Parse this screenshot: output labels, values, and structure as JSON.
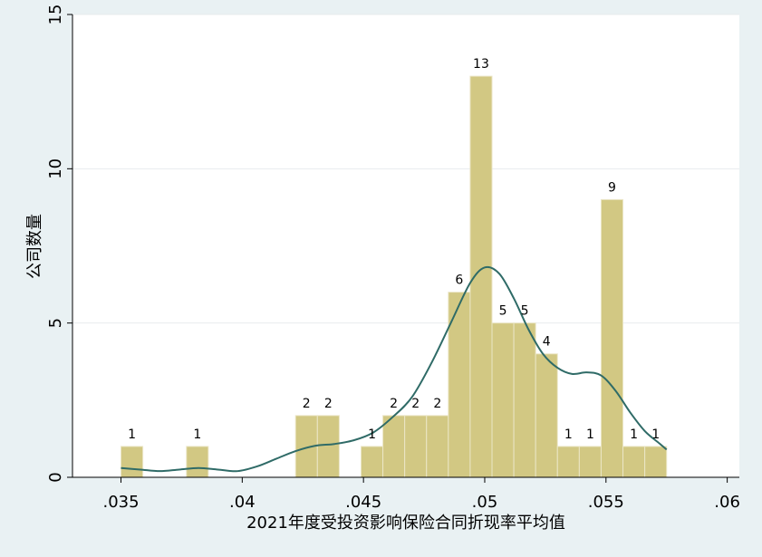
{
  "chart_data": {
    "type": "bar",
    "xlabel": "2021年度受投资影响保险合同折现率平均值",
    "ylabel": "公司数量",
    "xlim": [
      0.033,
      0.0605
    ],
    "ylim": [
      0,
      15
    ],
    "xticks": [
      {
        "value": 0.035,
        "label": ".035"
      },
      {
        "value": 0.04,
        "label": ".04"
      },
      {
        "value": 0.045,
        "label": ".045"
      },
      {
        "value": 0.05,
        "label": ".05"
      },
      {
        "value": 0.055,
        "label": ".055"
      },
      {
        "value": 0.06,
        "label": ".06"
      }
    ],
    "yticks": [
      {
        "value": 0,
        "label": "0"
      },
      {
        "value": 5,
        "label": "5"
      },
      {
        "value": 10,
        "label": "10"
      },
      {
        "value": 15,
        "label": "15"
      }
    ],
    "bin_width": 0.0009,
    "bars": [
      {
        "x": 0.035,
        "count": 1,
        "label": "1"
      },
      {
        "x": 0.0377,
        "count": 1,
        "label": "1"
      },
      {
        "x": 0.0422,
        "count": 2,
        "label": "2"
      },
      {
        "x": 0.0431,
        "count": 2,
        "label": "2"
      },
      {
        "x": 0.0449,
        "count": 1,
        "label": "1"
      },
      {
        "x": 0.0458,
        "count": 2,
        "label": "2"
      },
      {
        "x": 0.0467,
        "count": 2,
        "label": "2"
      },
      {
        "x": 0.0476,
        "count": 2,
        "label": "2"
      },
      {
        "x": 0.0485,
        "count": 6,
        "label": "6"
      },
      {
        "x": 0.0494,
        "count": 13,
        "label": "13"
      },
      {
        "x": 0.0503,
        "count": 5,
        "label": "5"
      },
      {
        "x": 0.0512,
        "count": 5,
        "label": "5"
      },
      {
        "x": 0.0521,
        "count": 4,
        "label": "4"
      },
      {
        "x": 0.053,
        "count": 1,
        "label": "1"
      },
      {
        "x": 0.0539,
        "count": 1,
        "label": "1"
      },
      {
        "x": 0.0548,
        "count": 9,
        "label": "9"
      },
      {
        "x": 0.0557,
        "count": 1,
        "label": "1"
      },
      {
        "x": 0.0566,
        "count": 1,
        "label": "1"
      }
    ],
    "density_curve": [
      [
        0.035,
        0.3
      ],
      [
        0.0358,
        0.25
      ],
      [
        0.0366,
        0.2
      ],
      [
        0.0374,
        0.25
      ],
      [
        0.0382,
        0.3
      ],
      [
        0.039,
        0.25
      ],
      [
        0.0398,
        0.2
      ],
      [
        0.0406,
        0.35
      ],
      [
        0.0414,
        0.6
      ],
      [
        0.0422,
        0.85
      ],
      [
        0.043,
        1.02
      ],
      [
        0.0438,
        1.08
      ],
      [
        0.0446,
        1.2
      ],
      [
        0.0454,
        1.45
      ],
      [
        0.0462,
        1.95
      ],
      [
        0.047,
        2.6
      ],
      [
        0.0478,
        3.7
      ],
      [
        0.0486,
        5.0
      ],
      [
        0.0494,
        6.3
      ],
      [
        0.05,
        6.8
      ],
      [
        0.0506,
        6.6
      ],
      [
        0.0512,
        5.8
      ],
      [
        0.0518,
        4.8
      ],
      [
        0.0524,
        4.0
      ],
      [
        0.053,
        3.55
      ],
      [
        0.0536,
        3.35
      ],
      [
        0.0542,
        3.4
      ],
      [
        0.0548,
        3.3
      ],
      [
        0.0554,
        2.8
      ],
      [
        0.056,
        2.1
      ],
      [
        0.0566,
        1.5
      ],
      [
        0.0572,
        1.1
      ],
      [
        0.0575,
        0.9
      ]
    ],
    "grid": true,
    "legend": "none",
    "colors": {
      "bar_fill": "#d2c883",
      "bar_edge": "#ebe6c6",
      "curve": "#2f6b67",
      "grid": "#e8ebee",
      "ylabel": "#5a1b45",
      "background": "#e9f1f3",
      "plot_background": "#ffffff"
    }
  }
}
